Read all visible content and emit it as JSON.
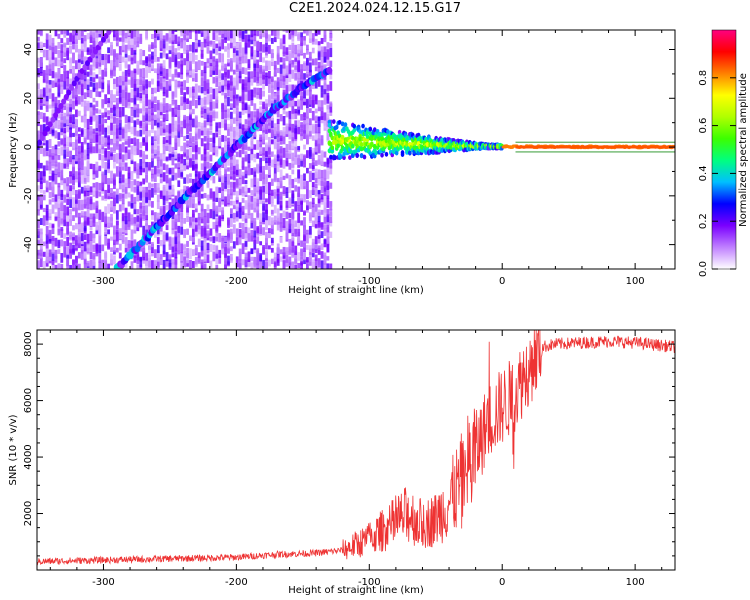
{
  "figure": {
    "title": "C2E1.2024.024.12.15.G17"
  },
  "colors": {
    "snr_line": "#ee3333",
    "colorbar": [
      "#ffffff",
      "#c080ff",
      "#7a00ff",
      "#0000ff",
      "#00bfff",
      "#00ff80",
      "#3cff00",
      "#b0ff00",
      "#ffff00",
      "#ff8000",
      "#ff0000",
      "#ff0080"
    ]
  },
  "chart_data": [
    {
      "type": "heatmap",
      "title": "",
      "xlabel": "Height of straight line (km)",
      "ylabel": "Frequency (Hz)",
      "xlim": [
        -350,
        130
      ],
      "ylim": [
        -50,
        48
      ],
      "xticks": [
        -300,
        -200,
        -100,
        0,
        100
      ],
      "yticks": [
        -40,
        -20,
        0,
        20,
        40
      ],
      "colorbar": {
        "label": "Normalized spectral amplitude",
        "range": [
          0,
          1
        ],
        "ticks": [
          "0.0",
          "0.2",
          "0.4",
          "0.6",
          "0.8"
        ]
      },
      "features": {
        "noise_region_x": [
          -350,
          -128
        ],
        "diagonal_track": {
          "points": [
            [
              -290,
              -50
            ],
            [
              -250,
              -27
            ],
            [
              -210,
              -5
            ],
            [
              -175,
              14
            ],
            [
              -150,
              25
            ],
            [
              -130,
              31
            ]
          ]
        },
        "faint_track": {
          "points": [
            [
              -350,
              0
            ],
            [
              -320,
              28
            ],
            [
              -295,
              48
            ]
          ]
        },
        "signal_band": {
          "points": [
            [
              -130,
              3
            ],
            [
              -100,
              2
            ],
            [
              -60,
              1
            ],
            [
              -30,
              0.5
            ],
            [
              0,
              0.2
            ],
            [
              130,
              0
            ]
          ],
          "note_visible": ""
        }
      }
    },
    {
      "type": "line",
      "title": "",
      "xlabel": "Height of straight line (km)",
      "ylabel": "SNR (10 * v/v)",
      "xlim": [
        -350,
        130
      ],
      "ylim": [
        0,
        8500
      ],
      "xticks": [
        -300,
        -200,
        -100,
        0,
        100
      ],
      "yticks": [
        2000,
        4000,
        6000,
        8000
      ],
      "series": [
        {
          "x": [
            -350,
            -300,
            -250,
            -200,
            -170,
            -140,
            -120,
            -100,
            -80,
            -70,
            -60,
            -50,
            -40,
            -30,
            -20,
            -10,
            0,
            10,
            20,
            30,
            40,
            60,
            80,
            100,
            130
          ],
          "y": [
            300,
            350,
            400,
            450,
            550,
            600,
            700,
            1100,
            1700,
            2000,
            1600,
            1800,
            2400,
            3200,
            4200,
            5300,
            5800,
            6300,
            7200,
            7900,
            8000,
            8050,
            8100,
            8050,
            7900
          ]
        }
      ]
    }
  ]
}
